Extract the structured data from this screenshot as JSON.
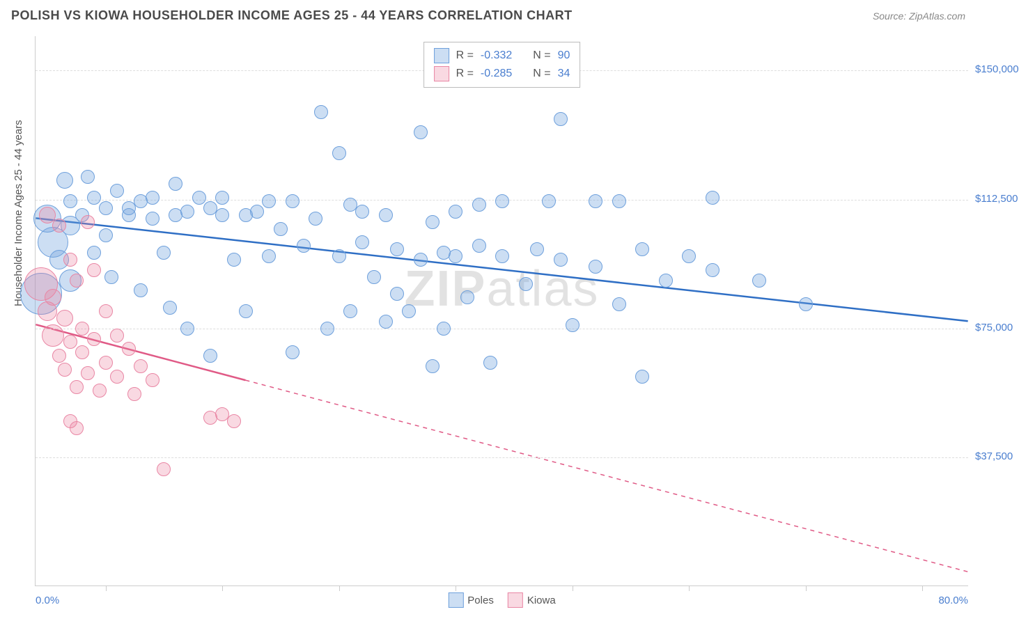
{
  "header": {
    "title": "POLISH VS KIOWA HOUSEHOLDER INCOME AGES 25 - 44 YEARS CORRELATION CHART",
    "source": "Source: ZipAtlas.com"
  },
  "chart": {
    "type": "scatter",
    "y_axis_title": "Householder Income Ages 25 - 44 years",
    "xlim": [
      0,
      80
    ],
    "ylim": [
      0,
      160000
    ],
    "x_tick_label_left": "0.0%",
    "x_tick_label_right": "80.0%",
    "x_ticks": [
      6,
      16,
      26,
      36,
      46,
      56,
      66,
      76
    ],
    "y_ticks": [
      {
        "v": 37500,
        "label": "$37,500"
      },
      {
        "v": 75000,
        "label": "$75,000"
      },
      {
        "v": 112500,
        "label": "$112,500"
      },
      {
        "v": 150000,
        "label": "$150,000"
      }
    ],
    "watermark": {
      "bold": "ZIP",
      "rest": "atlas"
    },
    "colors": {
      "poles_fill": "rgba(110,160,220,0.35)",
      "poles_stroke": "#6ea0dc",
      "poles_line": "#2f6fc5",
      "kiowa_fill": "rgba(235,130,160,0.30)",
      "kiowa_stroke": "#e986a4",
      "kiowa_line": "#e05a86",
      "ylabel": "#4a7ecf",
      "grid": "#dddddd"
    },
    "series": [
      {
        "name": "Poles",
        "key": "poles",
        "trend": {
          "x1": 0,
          "y1": 107000,
          "x2": 80,
          "y2": 77000,
          "solid_to_x": 80
        },
        "points": [
          {
            "x": 0.5,
            "y": 85000,
            "r": 30
          },
          {
            "x": 1,
            "y": 107000,
            "r": 20
          },
          {
            "x": 1.5,
            "y": 100000,
            "r": 22
          },
          {
            "x": 2,
            "y": 95000,
            "r": 14
          },
          {
            "x": 2.5,
            "y": 118000,
            "r": 12
          },
          {
            "x": 3,
            "y": 105000,
            "r": 14
          },
          {
            "x": 3,
            "y": 112000,
            "r": 10
          },
          {
            "x": 3,
            "y": 89000,
            "r": 16
          },
          {
            "x": 4,
            "y": 108000,
            "r": 10
          },
          {
            "x": 4.5,
            "y": 119000,
            "r": 10
          },
          {
            "x": 5,
            "y": 97000,
            "r": 10
          },
          {
            "x": 5,
            "y": 113000,
            "r": 10
          },
          {
            "x": 6,
            "y": 110000,
            "r": 10
          },
          {
            "x": 6,
            "y": 102000,
            "r": 10
          },
          {
            "x": 6.5,
            "y": 90000,
            "r": 10
          },
          {
            "x": 7,
            "y": 115000,
            "r": 10
          },
          {
            "x": 8,
            "y": 110000,
            "r": 10
          },
          {
            "x": 8,
            "y": 108000,
            "r": 10
          },
          {
            "x": 9,
            "y": 112000,
            "r": 10
          },
          {
            "x": 9,
            "y": 86000,
            "r": 10
          },
          {
            "x": 10,
            "y": 107000,
            "r": 10
          },
          {
            "x": 10,
            "y": 113000,
            "r": 10
          },
          {
            "x": 11,
            "y": 97000,
            "r": 10
          },
          {
            "x": 11.5,
            "y": 81000,
            "r": 10
          },
          {
            "x": 12,
            "y": 108000,
            "r": 10
          },
          {
            "x": 12,
            "y": 117000,
            "r": 10
          },
          {
            "x": 13,
            "y": 109000,
            "r": 10
          },
          {
            "x": 13,
            "y": 75000,
            "r": 10
          },
          {
            "x": 14,
            "y": 113000,
            "r": 10
          },
          {
            "x": 15,
            "y": 110000,
            "r": 10
          },
          {
            "x": 15,
            "y": 67000,
            "r": 10
          },
          {
            "x": 16,
            "y": 108000,
            "r": 10
          },
          {
            "x": 16,
            "y": 113000,
            "r": 10
          },
          {
            "x": 17,
            "y": 95000,
            "r": 10
          },
          {
            "x": 18,
            "y": 108000,
            "r": 10
          },
          {
            "x": 18,
            "y": 80000,
            "r": 10
          },
          {
            "x": 19,
            "y": 109000,
            "r": 10
          },
          {
            "x": 20,
            "y": 112000,
            "r": 10
          },
          {
            "x": 20,
            "y": 96000,
            "r": 10
          },
          {
            "x": 21,
            "y": 104000,
            "r": 10
          },
          {
            "x": 22,
            "y": 112000,
            "r": 10
          },
          {
            "x": 22,
            "y": 68000,
            "r": 10
          },
          {
            "x": 23,
            "y": 99000,
            "r": 10
          },
          {
            "x": 24,
            "y": 107000,
            "r": 10
          },
          {
            "x": 24.5,
            "y": 138000,
            "r": 10
          },
          {
            "x": 25,
            "y": 75000,
            "r": 10
          },
          {
            "x": 26,
            "y": 96000,
            "r": 10
          },
          {
            "x": 26,
            "y": 126000,
            "r": 10
          },
          {
            "x": 27,
            "y": 111000,
            "r": 10
          },
          {
            "x": 27,
            "y": 80000,
            "r": 10
          },
          {
            "x": 28,
            "y": 100000,
            "r": 10
          },
          {
            "x": 28,
            "y": 109000,
            "r": 10
          },
          {
            "x": 29,
            "y": 90000,
            "r": 10
          },
          {
            "x": 30,
            "y": 77000,
            "r": 10
          },
          {
            "x": 30,
            "y": 108000,
            "r": 10
          },
          {
            "x": 31,
            "y": 98000,
            "r": 10
          },
          {
            "x": 31,
            "y": 85000,
            "r": 10
          },
          {
            "x": 32,
            "y": 80000,
            "r": 10
          },
          {
            "x": 33,
            "y": 95000,
            "r": 10
          },
          {
            "x": 33,
            "y": 132000,
            "r": 10
          },
          {
            "x": 34,
            "y": 106000,
            "r": 10
          },
          {
            "x": 34,
            "y": 64000,
            "r": 10
          },
          {
            "x": 35,
            "y": 97000,
            "r": 10
          },
          {
            "x": 35,
            "y": 75000,
            "r": 10
          },
          {
            "x": 36,
            "y": 109000,
            "r": 10
          },
          {
            "x": 36,
            "y": 96000,
            "r": 10
          },
          {
            "x": 37,
            "y": 84000,
            "r": 10
          },
          {
            "x": 38,
            "y": 111000,
            "r": 10
          },
          {
            "x": 38,
            "y": 99000,
            "r": 10
          },
          {
            "x": 39,
            "y": 65000,
            "r": 10
          },
          {
            "x": 40,
            "y": 96000,
            "r": 10
          },
          {
            "x": 40,
            "y": 112000,
            "r": 10
          },
          {
            "x": 42,
            "y": 88000,
            "r": 10
          },
          {
            "x": 43,
            "y": 98000,
            "r": 10
          },
          {
            "x": 44,
            "y": 112000,
            "r": 10
          },
          {
            "x": 45,
            "y": 95000,
            "r": 10
          },
          {
            "x": 45,
            "y": 136000,
            "r": 10
          },
          {
            "x": 46,
            "y": 76000,
            "r": 10
          },
          {
            "x": 48,
            "y": 112000,
            "r": 10
          },
          {
            "x": 48,
            "y": 93000,
            "r": 10
          },
          {
            "x": 50,
            "y": 82000,
            "r": 10
          },
          {
            "x": 50,
            "y": 112000,
            "r": 10
          },
          {
            "x": 52,
            "y": 98000,
            "r": 10
          },
          {
            "x": 52,
            "y": 61000,
            "r": 10
          },
          {
            "x": 54,
            "y": 89000,
            "r": 10
          },
          {
            "x": 56,
            "y": 96000,
            "r": 10
          },
          {
            "x": 58,
            "y": 92000,
            "r": 10
          },
          {
            "x": 58,
            "y": 113000,
            "r": 10
          },
          {
            "x": 62,
            "y": 89000,
            "r": 10
          },
          {
            "x": 66,
            "y": 82000,
            "r": 10
          }
        ]
      },
      {
        "name": "Kiowa",
        "key": "kiowa",
        "trend": {
          "x1": 0,
          "y1": 76000,
          "x2": 80,
          "y2": 4000,
          "solid_to_x": 18
        },
        "points": [
          {
            "x": 0.5,
            "y": 88000,
            "r": 24
          },
          {
            "x": 1,
            "y": 80000,
            "r": 14
          },
          {
            "x": 1,
            "y": 108000,
            "r": 12
          },
          {
            "x": 1.5,
            "y": 84000,
            "r": 12
          },
          {
            "x": 1.5,
            "y": 73000,
            "r": 16
          },
          {
            "x": 2,
            "y": 105000,
            "r": 10
          },
          {
            "x": 2,
            "y": 67000,
            "r": 10
          },
          {
            "x": 2.5,
            "y": 78000,
            "r": 12
          },
          {
            "x": 2.5,
            "y": 63000,
            "r": 10
          },
          {
            "x": 3,
            "y": 95000,
            "r": 10
          },
          {
            "x": 3,
            "y": 71000,
            "r": 10
          },
          {
            "x": 3,
            "y": 48000,
            "r": 10
          },
          {
            "x": 3.5,
            "y": 89000,
            "r": 10
          },
          {
            "x": 3.5,
            "y": 58000,
            "r": 10
          },
          {
            "x": 3.5,
            "y": 46000,
            "r": 10
          },
          {
            "x": 4,
            "y": 75000,
            "r": 10
          },
          {
            "x": 4,
            "y": 68000,
            "r": 10
          },
          {
            "x": 4.5,
            "y": 106000,
            "r": 10
          },
          {
            "x": 4.5,
            "y": 62000,
            "r": 10
          },
          {
            "x": 5,
            "y": 92000,
            "r": 10
          },
          {
            "x": 5,
            "y": 72000,
            "r": 10
          },
          {
            "x": 5.5,
            "y": 57000,
            "r": 10
          },
          {
            "x": 6,
            "y": 80000,
            "r": 10
          },
          {
            "x": 6,
            "y": 65000,
            "r": 10
          },
          {
            "x": 7,
            "y": 73000,
            "r": 10
          },
          {
            "x": 7,
            "y": 61000,
            "r": 10
          },
          {
            "x": 8,
            "y": 69000,
            "r": 10
          },
          {
            "x": 8.5,
            "y": 56000,
            "r": 10
          },
          {
            "x": 9,
            "y": 64000,
            "r": 10
          },
          {
            "x": 10,
            "y": 60000,
            "r": 10
          },
          {
            "x": 11,
            "y": 34000,
            "r": 10
          },
          {
            "x": 15,
            "y": 49000,
            "r": 10
          },
          {
            "x": 16,
            "y": 50000,
            "r": 10
          },
          {
            "x": 17,
            "y": 48000,
            "r": 10
          }
        ]
      }
    ],
    "legend_top": [
      {
        "swatch": "poles",
        "r_label": "R =",
        "r_value": "-0.332",
        "n_label": "N =",
        "n_value": "90"
      },
      {
        "swatch": "kiowa",
        "r_label": "R =",
        "r_value": "-0.285",
        "n_label": "N =",
        "n_value": "34"
      }
    ],
    "legend_bottom": [
      {
        "swatch": "poles",
        "label": "Poles"
      },
      {
        "swatch": "kiowa",
        "label": "Kiowa"
      }
    ]
  }
}
